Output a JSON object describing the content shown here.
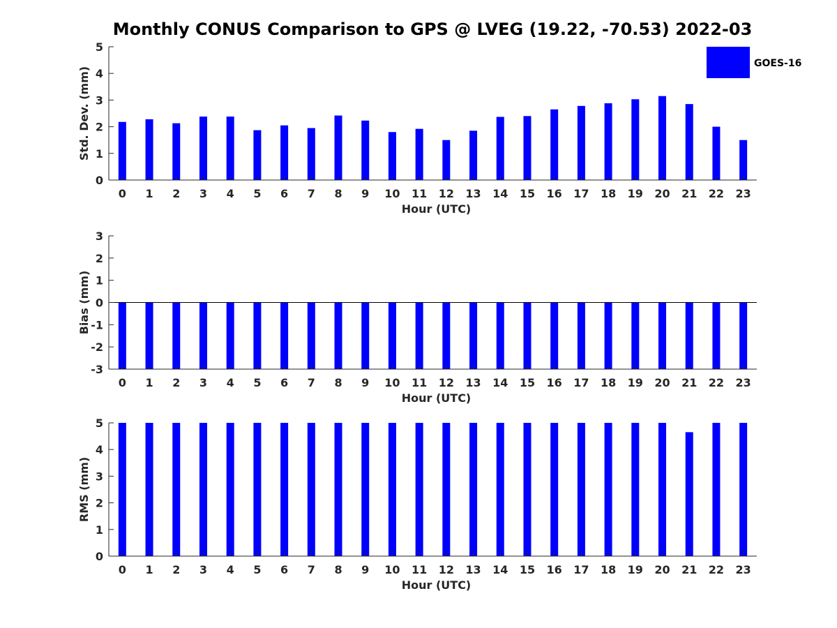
{
  "title": "Monthly CONUS Comparison to GPS @ LVEG (19.22, -70.53) 2022-03",
  "legend": {
    "label": "GOES-16",
    "color": "#0000ff",
    "placement": "top-right"
  },
  "chart_data": [
    {
      "type": "bar",
      "xlabel": "Hour (UTC)",
      "ylabel": "Std. Dev. (mm)",
      "categories": [
        "0",
        "1",
        "2",
        "3",
        "4",
        "5",
        "6",
        "7",
        "8",
        "9",
        "10",
        "11",
        "12",
        "13",
        "14",
        "15",
        "16",
        "17",
        "18",
        "19",
        "20",
        "21",
        "22",
        "23"
      ],
      "ylim": [
        0,
        5
      ],
      "yticks": [
        "0",
        "1",
        "2",
        "3",
        "4",
        "5"
      ],
      "series": [
        {
          "name": "GOES-16",
          "color": "#0000ff",
          "values": [
            2.18,
            2.28,
            2.13,
            2.38,
            2.38,
            1.87,
            2.05,
            1.95,
            2.42,
            2.23,
            1.8,
            1.92,
            1.5,
            1.85,
            2.37,
            2.4,
            2.65,
            2.78,
            2.88,
            3.03,
            3.15,
            2.85,
            2.0,
            1.5
          ]
        }
      ]
    },
    {
      "type": "bar",
      "xlabel": "Hour (UTC)",
      "ylabel": "Bias (mm)",
      "categories": [
        "0",
        "1",
        "2",
        "3",
        "4",
        "5",
        "6",
        "7",
        "8",
        "9",
        "10",
        "11",
        "12",
        "13",
        "14",
        "15",
        "16",
        "17",
        "18",
        "19",
        "20",
        "21",
        "22",
        "23"
      ],
      "ylim": [
        -3,
        3
      ],
      "yticks": [
        "-3",
        "-2",
        "-1",
        "0",
        "1",
        "2",
        "3"
      ],
      "zero_line": true,
      "series": [
        {
          "name": "GOES-16",
          "color": "#0000ff",
          "values": [
            -3,
            -3,
            -3,
            -3,
            -3,
            -3,
            -3,
            -3,
            -3,
            -3,
            -3,
            -3,
            -3,
            -3,
            -3,
            -3,
            -3,
            -3,
            -3,
            -3,
            -3,
            -3,
            -3,
            -3
          ]
        }
      ]
    },
    {
      "type": "bar",
      "xlabel": "Hour (UTC)",
      "ylabel": "RMS (mm)",
      "categories": [
        "0",
        "1",
        "2",
        "3",
        "4",
        "5",
        "6",
        "7",
        "8",
        "9",
        "10",
        "11",
        "12",
        "13",
        "14",
        "15",
        "16",
        "17",
        "18",
        "19",
        "20",
        "21",
        "22",
        "23"
      ],
      "ylim": [
        0,
        5
      ],
      "yticks": [
        "0",
        "1",
        "2",
        "3",
        "4",
        "5"
      ],
      "series": [
        {
          "name": "GOES-16",
          "color": "#0000ff",
          "values": [
            5,
            5,
            5,
            5,
            5,
            5,
            5,
            5,
            5,
            5,
            5,
            5,
            5,
            5,
            5,
            5,
            5,
            5,
            5,
            5,
            5,
            4.65,
            5,
            5
          ]
        }
      ]
    }
  ]
}
